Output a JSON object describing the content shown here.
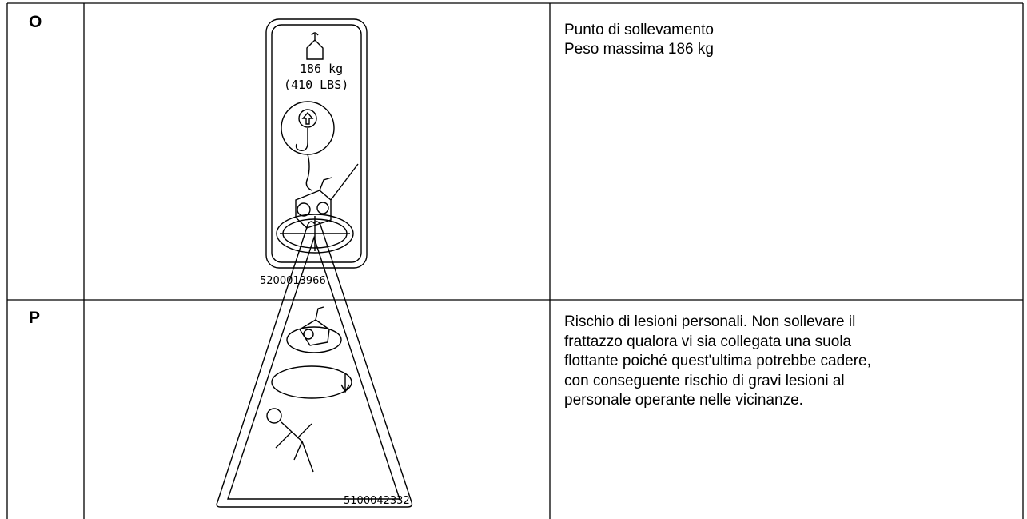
{
  "table": {
    "rows": [
      {
        "label": "O",
        "image": {
          "weight": "186 kg",
          "weight_lbs": "(410 LBS)",
          "code": "5200013966"
        },
        "description": [
          "Punto di sollevamento",
          "Peso massima 186 kg"
        ]
      },
      {
        "label": "P",
        "image": {
          "code": "5100042332"
        },
        "description": [
          "Rischio di lesioni personali. Non sollevare il",
          "frattazzo qualora vi sia collegata una suola",
          "flottante poiché quest'ultima potrebbe cadere,",
          "con conseguente rischio di gravi lesioni al",
          "personale operante nelle vicinanze."
        ]
      }
    ]
  }
}
